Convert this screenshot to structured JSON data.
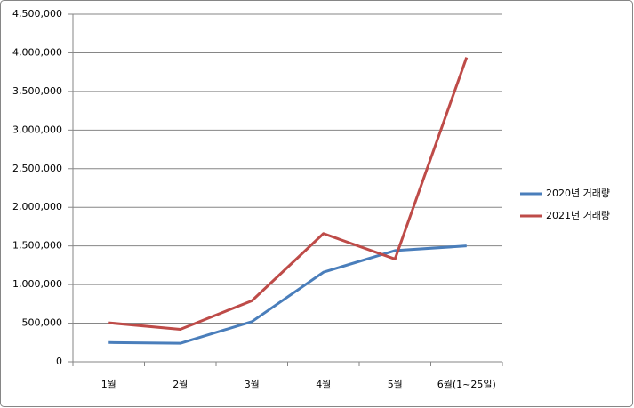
{
  "chart_data": {
    "type": "line",
    "categories": [
      "1월",
      "2월",
      "3월",
      "4월",
      "5월",
      "6월(1~25일)"
    ],
    "series": [
      {
        "name": "2020년 거래량",
        "color": "#4a7ebb",
        "values": [
          250000,
          240000,
          520000,
          1160000,
          1440000,
          1500000
        ]
      },
      {
        "name": "2021년 거래량",
        "color": "#be4b48",
        "values": [
          505000,
          420000,
          790000,
          1660000,
          1330000,
          3940000
        ]
      }
    ],
    "ylim": [
      0,
      4500000
    ],
    "yticks": [
      0,
      {
        "value": 500000,
        "label": "500,000"
      },
      {
        "value": 1000000,
        "label": "1,000,000"
      },
      {
        "value": 1500000,
        "label": "1,500,000"
      },
      {
        "value": 2000000,
        "label": "2,000,000"
      },
      {
        "value": 2500000,
        "label": "2,500,000"
      },
      {
        "value": 3000000,
        "label": "3,000,000"
      },
      {
        "value": 3500000,
        "label": "3,500,000"
      },
      {
        "value": 4000000,
        "label": "4,000,000"
      },
      {
        "value": 4500000,
        "label": "4,500,000"
      }
    ],
    "grid": true,
    "legend": "right"
  }
}
